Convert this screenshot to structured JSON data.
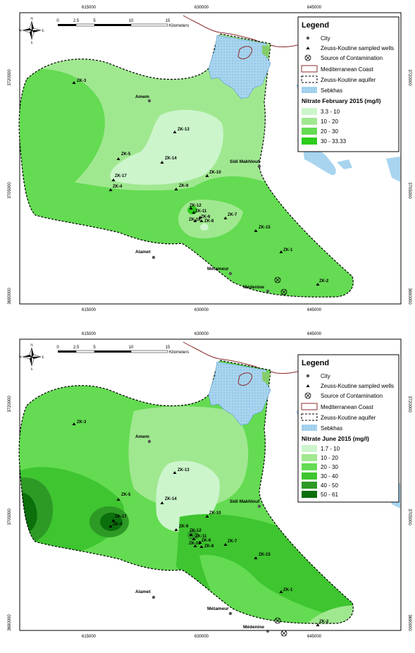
{
  "x_ticks": [
    "615000",
    "630000",
    "645000"
  ],
  "y_ticks": [
    "3720000",
    "3705000",
    "3690000"
  ],
  "scalebar": {
    "labels": [
      "0",
      "2.5",
      "5",
      "10",
      "15"
    ],
    "unit": "Kilometers"
  },
  "north_arrow": {
    "n": "N",
    "s": "S",
    "e": "E",
    "w": "W"
  },
  "legend": {
    "title": "Legend",
    "city": "City",
    "wells": "Zeuss-Koutine sampled wells",
    "contamination": "Source of Contamination",
    "coast": "Mediterranean Coast",
    "aquifer": "Zeuss-Koutine aquifer",
    "sebkhas": "Sebkhas"
  },
  "cities": [
    "Amem",
    "Sidi Makhlouf",
    "Alamet",
    "Métameur",
    "Médenine"
  ],
  "wells": [
    "ZK-3",
    "ZK-13",
    "ZK-5",
    "ZK-14",
    "ZK-10",
    "ZK-17",
    "ZK-9",
    "ZK-4",
    "ZK-12",
    "ZK-11",
    "ZK-16",
    "ZK-6",
    "ZK-8",
    "ZK-7",
    "ZK-15",
    "ZK-1",
    "ZK-2"
  ],
  "maps": [
    {
      "nitrate_title": "Nitrate February 2015 (mg/l)",
      "classes": [
        {
          "label": "3.3 - 10",
          "color": "#ccf5cc"
        },
        {
          "label": "10 - 20",
          "color": "#a0e890"
        },
        {
          "label": "20 - 30",
          "color": "#64db52"
        },
        {
          "label": "30 - 33.33",
          "color": "#2ccc1c"
        }
      ]
    },
    {
      "nitrate_title": "Nitrate June 2015 (mg/l)",
      "classes": [
        {
          "label": "1.7 - 10",
          "color": "#ccf5cc"
        },
        {
          "label": "10 - 20",
          "color": "#a0e890"
        },
        {
          "label": "20 - 30",
          "color": "#64db52"
        },
        {
          "label": "30 - 40",
          "color": "#3ec530"
        },
        {
          "label": "40 - 50",
          "color": "#2e9a26"
        },
        {
          "label": "50 - 61",
          "color": "#0b6f0b"
        }
      ]
    }
  ]
}
